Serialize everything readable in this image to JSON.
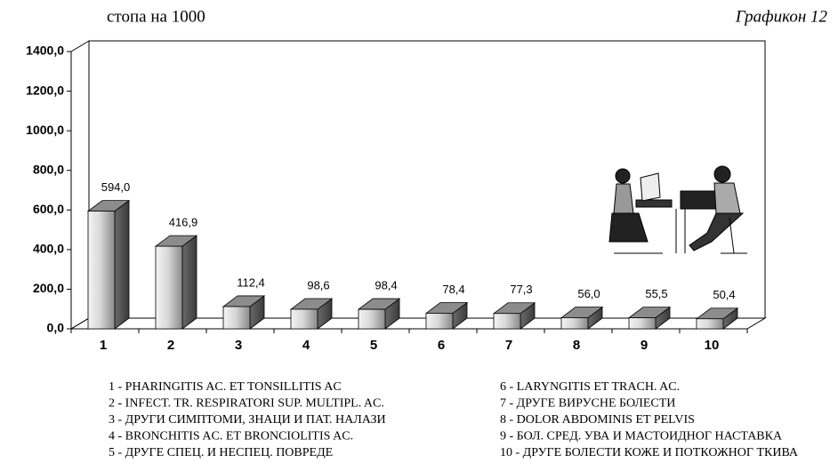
{
  "chart_data": {
    "type": "bar3d",
    "subtitle": "стопа на 1000",
    "title": "Графикон 12",
    "categories": [
      "1",
      "2",
      "3",
      "4",
      "5",
      "6",
      "7",
      "8",
      "9",
      "10"
    ],
    "values": [
      594.0,
      416.9,
      112.4,
      98.6,
      98.4,
      78.4,
      77.3,
      56.0,
      55.5,
      50.4
    ],
    "value_labels": [
      "594,0",
      "416,9",
      "112,4",
      "98,6",
      "98,4",
      "78,4",
      "77,3",
      "56,0",
      "55,5",
      "50,4"
    ],
    "ylim": [
      0,
      1400
    ],
    "yticks": [
      {
        "value": 0,
        "label": "0,0"
      },
      {
        "value": 200,
        "label": "200,0"
      },
      {
        "value": 400,
        "label": "400,0"
      },
      {
        "value": 600,
        "label": "600,0"
      },
      {
        "value": 800,
        "label": "800,0"
      },
      {
        "value": 1000,
        "label": "1000,0"
      },
      {
        "value": 1200,
        "label": "1200,0"
      },
      {
        "value": 1400,
        "label": "1400,0"
      }
    ],
    "category_descriptions": [
      "1 - PHARINGITIS AC. ET TONSILLITIS AC",
      "2 - INFECT. TR. RESPIRATORI SUP. MULTIPL. AC.",
      "3 - ДРУГИ СИМПТОМИ, ЗНАЦИ И ПАТ. НАЛАЗИ",
      "4 - BRONCHITIS AC. ET BRONCIOLITIS AC.",
      "5 - ДРУГЕ СПЕЦ. И НЕСПЕЦ. ПОВРЕДЕ",
      "6 - LARYNGITIS ET TRACH. AC.",
      "7 - ДРУГЕ ВИРУСНЕ БОЛЕСТИ",
      "8 - DOLOR ABDOMINIS ET PELVIS",
      "9 - БОЛ. СРЕД. УВА И МАСТОИДНОГ НАСТАВКА",
      "10 - ДРУГЕ БОЛЕСТИ КОЖЕ И ПОТКОЖНОГ ТКИВА"
    ],
    "grid": false
  }
}
